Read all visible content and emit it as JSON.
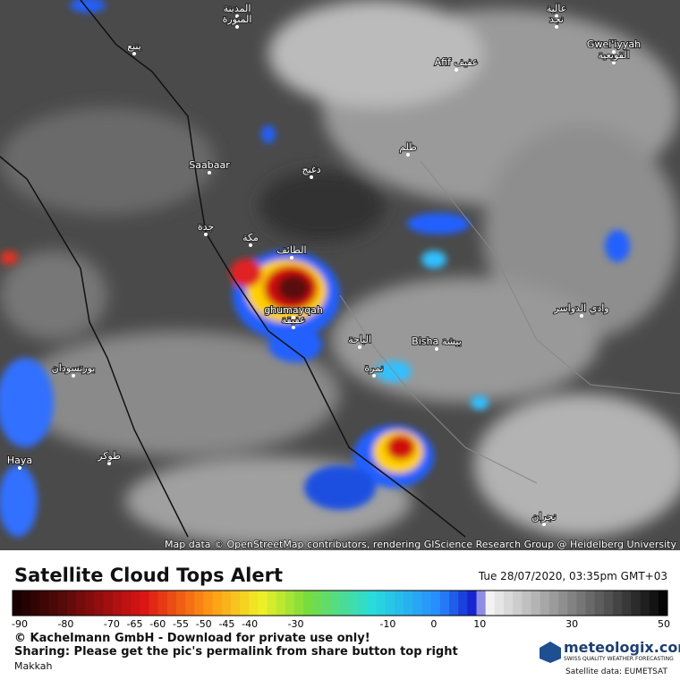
{
  "map": {
    "labels": [
      "المدينة",
      "المنورة",
      "ينبع",
      "Afif عفيف",
      "Gwei'iyyah",
      "القويعية",
      "عالية",
      "نجد",
      "ظلم",
      "دغبج",
      "Saabaar",
      "جدة",
      "مكة",
      "الطائف",
      "ghumayqah",
      "عفيقة",
      "الباحة",
      "Bisha بيشة",
      "نمرة",
      "وادي الدواسر",
      "بورتسودان",
      "Haya",
      "طوكر",
      "نجران"
    ],
    "attribution": "Map data © OpenStreetMap contributors, rendering GIScience Research Group @ Heidelberg University"
  },
  "legend": {
    "title": "Satellite Cloud Tops Alert",
    "date": "Tue 28/07/2020, 03:35pm GMT+03",
    "ticks": [
      -90,
      -80,
      -70,
      -65,
      -60,
      -55,
      -50,
      -45,
      -40,
      -30,
      -10,
      0,
      10,
      30,
      50
    ]
  },
  "footer": {
    "copyright": "© Kachelmann GmbH - Download for private use only!",
    "sharing": "Sharing: Please get the pic's permalink from share button top right",
    "location": "Makkah",
    "brand": "meteologix.com",
    "tagline": "SWISS QUALITY WEATHER FORECASTING",
    "source": "Satellite data: EUMETSAT"
  }
}
